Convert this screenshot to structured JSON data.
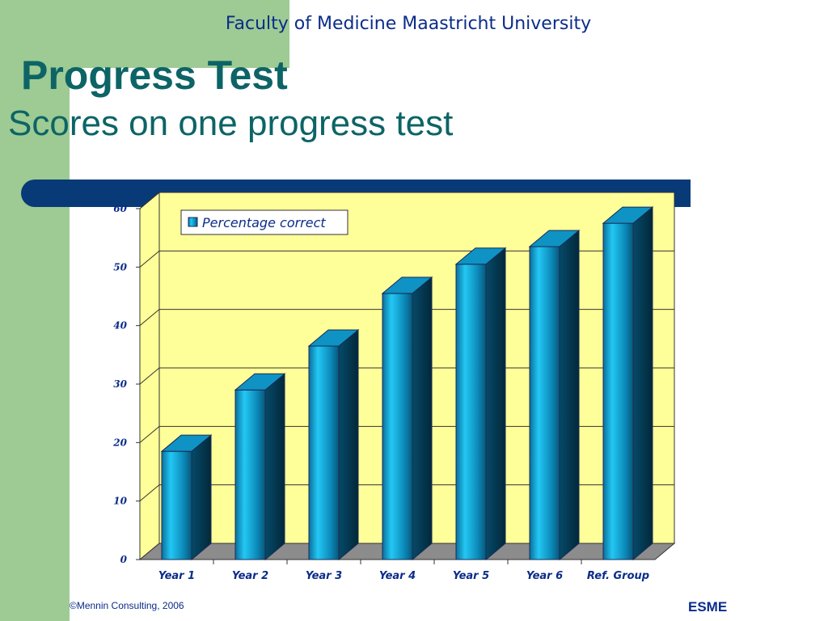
{
  "header": {
    "institution": "Faculty of Medicine Maastricht University",
    "title": "Progress Test",
    "subtitle": "Scores on one progress test"
  },
  "footer": {
    "copyright": "©Mennin Consulting, 2006",
    "brand": "ESME"
  },
  "colors": {
    "green_band": "#9dcb93",
    "navy_rule": "#083a78",
    "plot_bg": "#ffff99",
    "bar": "#0a8fc0",
    "title_teal": "#0d6466",
    "text_blue": "#0b2c8a"
  },
  "chart_data": {
    "type": "bar",
    "categories": [
      "Year 1",
      "Year 2",
      "Year 3",
      "Year 4",
      "Year 5",
      "Year 6",
      "Ref. Group"
    ],
    "series": [
      {
        "name": "Percentage correct",
        "values": [
          18.5,
          29,
          36.5,
          45.5,
          50.5,
          53.5,
          57.5
        ]
      }
    ],
    "yticks": [
      0,
      10,
      20,
      30,
      40,
      50,
      60
    ],
    "ylim": [
      0,
      60
    ],
    "grid": true,
    "legend": "top-left",
    "style": "3d-bar"
  }
}
